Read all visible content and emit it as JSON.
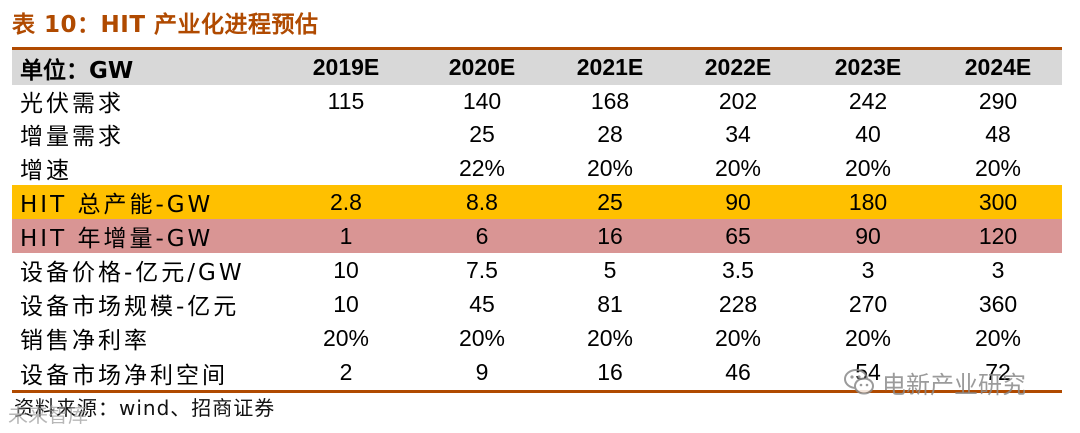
{
  "title": "表 10：HIT 产业化进程预估",
  "colors": {
    "accent": "#b04a00",
    "header_bg": "#d8d8d8",
    "highlight_orange": "#ffc000",
    "highlight_pink": "#d99594"
  },
  "table": {
    "header": [
      "单位：GW",
      "2019E",
      "2020E",
      "2021E",
      "2022E",
      "2023E",
      "2024E"
    ],
    "rows": [
      {
        "label": "光伏需求",
        "values": [
          "115",
          "140",
          "168",
          "202",
          "242",
          "290"
        ],
        "highlight": ""
      },
      {
        "label": "增量需求",
        "values": [
          "",
          "25",
          "28",
          "34",
          "40",
          "48"
        ],
        "highlight": ""
      },
      {
        "label": "增速",
        "values": [
          "",
          "22%",
          "20%",
          "20%",
          "20%",
          "20%"
        ],
        "highlight": ""
      },
      {
        "label": "HIT 总产能-GW",
        "values": [
          "2.8",
          "8.8",
          "25",
          "90",
          "180",
          "300"
        ],
        "highlight": "orange"
      },
      {
        "label": "HIT 年增量-GW",
        "values": [
          "1",
          "6",
          "16",
          "65",
          "90",
          "120"
        ],
        "highlight": "pink"
      },
      {
        "label": "设备价格-亿元/GW",
        "values": [
          "10",
          "7.5",
          "5",
          "3.5",
          "3",
          "3"
        ],
        "highlight": ""
      },
      {
        "label": "设备市场规模-亿元",
        "values": [
          "10",
          "45",
          "81",
          "228",
          "270",
          "360"
        ],
        "highlight": ""
      },
      {
        "label": "销售净利率",
        "values": [
          "20%",
          "20%",
          "20%",
          "20%",
          "20%",
          "20%"
        ],
        "highlight": ""
      },
      {
        "label": "设备市场净利空间",
        "values": [
          "2",
          "9",
          "16",
          "46",
          "54",
          "72"
        ],
        "highlight": ""
      }
    ]
  },
  "source": "资料来源：wind、招商证券",
  "watermark": {
    "text": "电新产业研究",
    "icon": "wechat-icon",
    "bottom_left_text": "未来智库"
  }
}
